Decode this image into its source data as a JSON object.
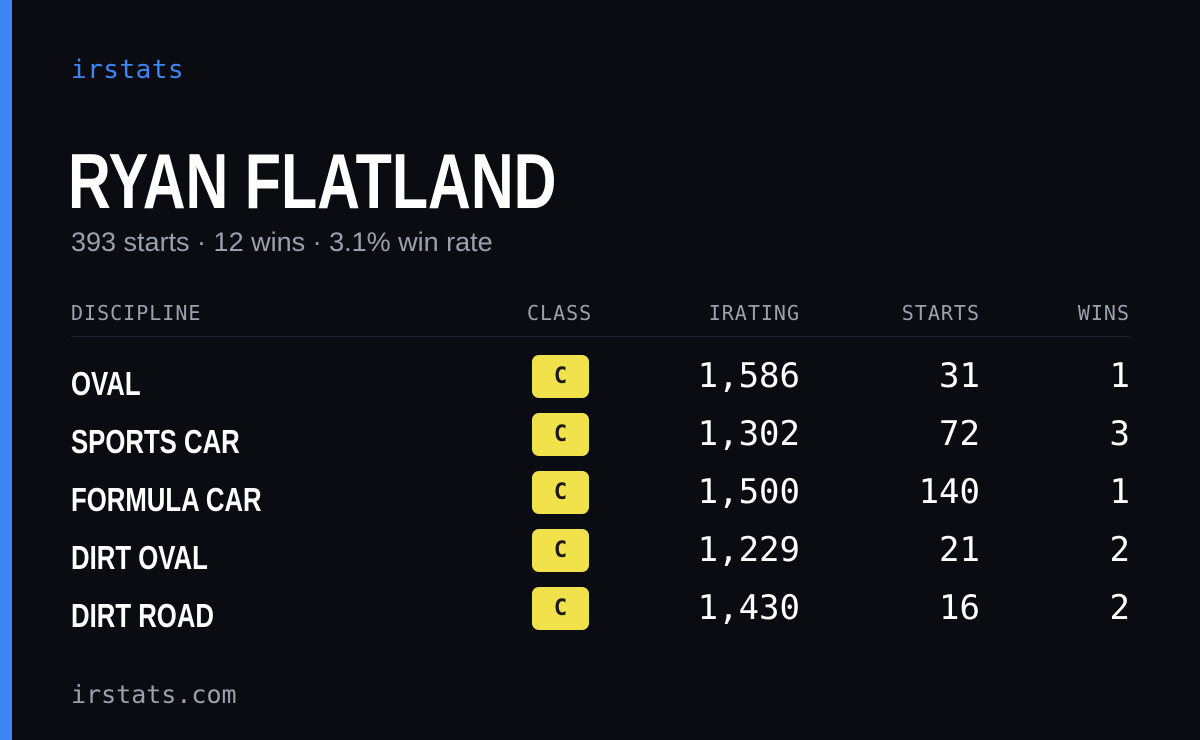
{
  "brand": "irstats",
  "driver": {
    "name": "RYAN FLATLAND",
    "summary": "393 starts · 12 wins · 3.1% win rate"
  },
  "table": {
    "headers": {
      "discipline": "DISCIPLINE",
      "class": "CLASS",
      "irating": "IRATING",
      "starts": "STARTS",
      "wins": "WINS"
    },
    "rows": [
      {
        "discipline": "OVAL",
        "class": "C",
        "irating": "1,586",
        "starts": "31",
        "wins": "1"
      },
      {
        "discipline": "SPORTS CAR",
        "class": "C",
        "irating": "1,302",
        "starts": "72",
        "wins": "3"
      },
      {
        "discipline": "FORMULA CAR",
        "class": "C",
        "irating": "1,500",
        "starts": "140",
        "wins": "1"
      },
      {
        "discipline": "DIRT OVAL",
        "class": "C",
        "irating": "1,229",
        "starts": "21",
        "wins": "2"
      },
      {
        "discipline": "DIRT ROAD",
        "class": "C",
        "irating": "1,430",
        "starts": "16",
        "wins": "2"
      }
    ]
  },
  "footer": "irstats.com",
  "colors": {
    "accent": "#3d86f6",
    "background": "#0a0c12",
    "class_badge": "#f1e24b",
    "muted_text": "#9aa1ad"
  }
}
